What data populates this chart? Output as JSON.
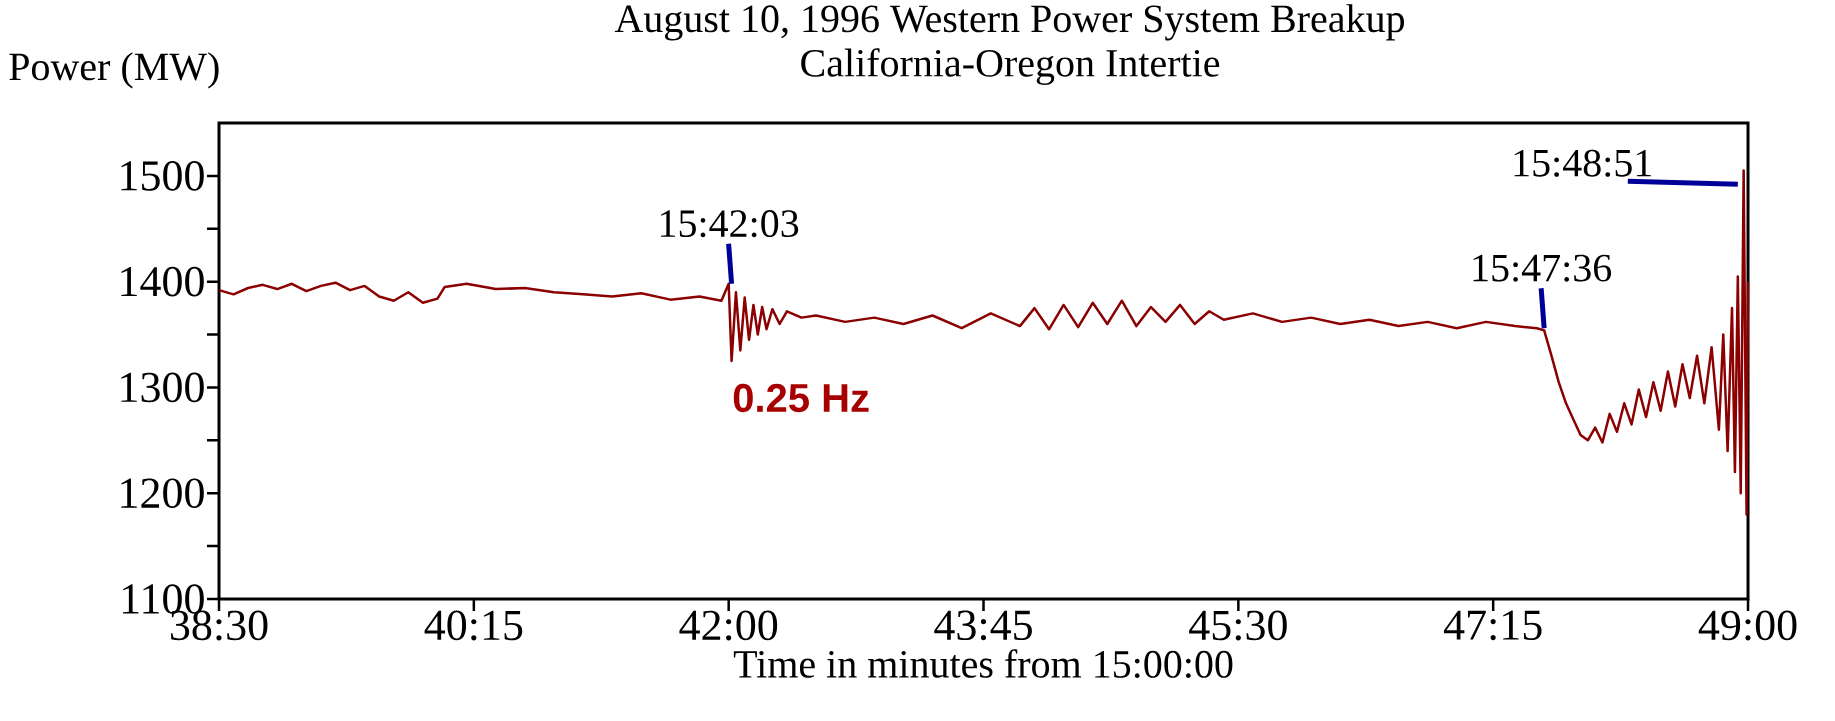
{
  "chart_data": {
    "type": "line",
    "title": "August 10, 1996 Western Power System Breakup",
    "subtitle": "California-Oregon Intertie",
    "xlabel": "Time in minutes from 15:00:00",
    "ylabel": "Power (MW)",
    "xlim": [
      38.5,
      49
    ],
    "ylim": [
      1100,
      1550
    ],
    "xticks": [
      {
        "value": 38.5,
        "label": "38:30"
      },
      {
        "value": 40.25,
        "label": "40:15"
      },
      {
        "value": 42,
        "label": "42:00"
      },
      {
        "value": 43.75,
        "label": "43:45"
      },
      {
        "value": 45.5,
        "label": "45:30"
      },
      {
        "value": 47.25,
        "label": "47:15"
      },
      {
        "value": 49,
        "label": "49:00"
      }
    ],
    "yticks": [
      1100,
      {
        "value": 1150,
        "label": null
      },
      1200,
      {
        "value": 1250,
        "label": null
      },
      1300,
      {
        "value": 1350,
        "label": null
      },
      1400,
      {
        "value": 1450,
        "label": null
      },
      1500
    ],
    "marker": "none",
    "line_style": "solid",
    "grid": false,
    "x": [
      38.5,
      38.6,
      38.7,
      38.8,
      38.9,
      39.0,
      39.1,
      39.2,
      39.3,
      39.4,
      39.5,
      39.6,
      39.7,
      39.8,
      39.9,
      40.0,
      40.05,
      40.2,
      40.4,
      40.6,
      40.8,
      41.0,
      41.2,
      41.4,
      41.6,
      41.8,
      41.95,
      42.0,
      42.02,
      42.05,
      42.08,
      42.11,
      42.14,
      42.17,
      42.2,
      42.23,
      42.26,
      42.3,
      42.35,
      42.4,
      42.5,
      42.6,
      42.8,
      43.0,
      43.2,
      43.4,
      43.6,
      43.8,
      44.0,
      44.1,
      44.2,
      44.3,
      44.4,
      44.5,
      44.6,
      44.7,
      44.8,
      44.9,
      45.0,
      45.1,
      45.2,
      45.3,
      45.4,
      45.6,
      45.8,
      46.0,
      46.2,
      46.4,
      46.6,
      46.8,
      47.0,
      47.2,
      47.4,
      47.55,
      47.6,
      47.65,
      47.7,
      47.75,
      47.8,
      47.85,
      47.9,
      47.95,
      48.0,
      48.05,
      48.1,
      48.15,
      48.2,
      48.25,
      48.3,
      48.35,
      48.4,
      48.45,
      48.5,
      48.55,
      48.6,
      48.65,
      48.7,
      48.75,
      48.8,
      48.83,
      48.86,
      48.89,
      48.91,
      48.93,
      48.95,
      48.97,
      48.99,
      49.0
    ],
    "series": [
      {
        "color": "#8b0000",
        "values": [
          1392,
          1388,
          1394,
          1397,
          1393,
          1398,
          1391,
          1396,
          1399,
          1392,
          1396,
          1386,
          1382,
          1390,
          1380,
          1384,
          1395,
          1398,
          1393,
          1394,
          1390,
          1388,
          1386,
          1389,
          1383,
          1386,
          1382,
          1398,
          1325,
          1390,
          1335,
          1385,
          1345,
          1378,
          1350,
          1376,
          1355,
          1374,
          1360,
          1372,
          1366,
          1368,
          1362,
          1366,
          1360,
          1368,
          1356,
          1370,
          1358,
          1375,
          1355,
          1378,
          1357,
          1380,
          1360,
          1382,
          1358,
          1376,
          1362,
          1378,
          1360,
          1372,
          1364,
          1370,
          1362,
          1366,
          1360,
          1364,
          1358,
          1362,
          1356,
          1362,
          1358,
          1356,
          1354,
          1330,
          1305,
          1285,
          1270,
          1255,
          1250,
          1262,
          1248,
          1275,
          1258,
          1285,
          1265,
          1298,
          1272,
          1305,
          1278,
          1315,
          1282,
          1322,
          1290,
          1330,
          1285,
          1338,
          1260,
          1350,
          1240,
          1375,
          1220,
          1405,
          1200,
          1505,
          1180,
          1400
        ]
      }
    ],
    "annotations": [
      {
        "text": "15:42:03",
        "x": 42.02,
        "y": 1398
      },
      {
        "text": "15:47:36",
        "x": 47.6,
        "y": 1356
      },
      {
        "text": "15:48:51",
        "x": 48.93,
        "y": 1492
      },
      "0.25 Hz"
    ]
  }
}
